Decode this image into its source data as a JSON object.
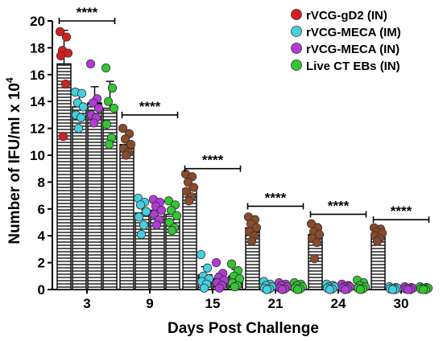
{
  "chart_data": {
    "type": "bar",
    "title": "",
    "xlabel": "Days Post Challenge",
    "ylabel": "Number of IFU/ml x 10",
    "ylabel_superscript": "4",
    "ylim": [
      0,
      20
    ],
    "yticks": [
      "0",
      "2",
      "4",
      "6",
      "8",
      "10",
      "12",
      "14",
      "16",
      "18",
      "20"
    ],
    "categories": [
      "3",
      "9",
      "15",
      "21",
      "24",
      "30"
    ],
    "legend_position": "top-right",
    "bar_pattern": "horizontal-stripes",
    "series": [
      {
        "name": "rVCG-gD2 (IN)",
        "color": "#d42020",
        "values": [
          16.8,
          10.8,
          7.5,
          4.6,
          4.1,
          4.2
        ],
        "errors": [
          2.5,
          0.6,
          0.7,
          0.5,
          0.8,
          0.3
        ]
      },
      {
        "name": "rVCG-MECA (IM)",
        "color": "#44d0e0",
        "values": [
          13.6,
          5.7,
          1.1,
          0.2,
          0.2,
          0.1
        ],
        "errors": [
          1.2,
          0.9,
          0.6,
          0.1,
          0.1,
          0.05
        ]
      },
      {
        "name": "rVCG-MECA (IN)",
        "color": "#b23ad8",
        "values": [
          13.9,
          5.9,
          0.8,
          0.2,
          0.2,
          0.1
        ],
        "errors": [
          1.2,
          0.8,
          0.4,
          0.1,
          0.1,
          0.05
        ]
      },
      {
        "name": "Live CT EBs (IN)",
        "color": "#33c633",
        "values": [
          13.5,
          5.6,
          1.0,
          0.2,
          0.3,
          0.1
        ],
        "errors": [
          2.0,
          0.8,
          0.5,
          0.1,
          0.2,
          0.05
        ]
      }
    ],
    "later_days_first_series_color": "#8a4b2a",
    "points": [
      [
        [
          19.2,
          18.8,
          17.8,
          17.6,
          17.4,
          15.3,
          11.4
        ],
        [
          14.7,
          14.6,
          13.9,
          13.6,
          13.0,
          12.8,
          12.0
        ],
        [
          16.8,
          14.2,
          13.9,
          13.5,
          13.0,
          12.8,
          12.4
        ],
        [
          16.5,
          15.0,
          14.0,
          13.5,
          12.3,
          11.3,
          10.8
        ]
      ],
      [
        [
          12.0,
          11.6,
          11.2,
          10.8,
          10.5,
          10.2,
          10.0
        ],
        [
          6.8,
          6.5,
          6.3,
          5.8,
          5.4,
          4.8,
          4.1
        ],
        [
          6.7,
          6.5,
          6.2,
          5.9,
          5.6,
          5.2,
          4.8
        ],
        [
          6.6,
          6.3,
          5.9,
          5.5,
          5.0,
          4.6,
          4.4
        ]
      ],
      [
        [
          8.6,
          8.4,
          8.0,
          7.6,
          7.3,
          6.9,
          6.6
        ],
        [
          2.6,
          1.6,
          1.0,
          0.8,
          0.6,
          0.4,
          0.1
        ],
        [
          2.0,
          1.2,
          0.9,
          0.7,
          0.5,
          0.3,
          0.1
        ],
        [
          1.9,
          1.4,
          1.0,
          0.8,
          0.5,
          0.3,
          0.2
        ]
      ],
      [
        [
          5.4,
          5.2,
          4.9,
          4.6,
          4.3,
          4.0,
          3.6
        ],
        [
          0.6,
          0.4,
          0.3,
          0.2,
          0.1,
          0.05,
          0.0
        ],
        [
          0.5,
          0.4,
          0.3,
          0.2,
          0.1,
          0.05,
          0.0
        ],
        [
          0.5,
          0.4,
          0.3,
          0.2,
          0.1,
          0.05,
          0.0
        ]
      ],
      [
        [
          4.9,
          4.6,
          4.3,
          4.1,
          3.8,
          3.5,
          2.3
        ],
        [
          0.4,
          0.3,
          0.2,
          0.2,
          0.1,
          0.05,
          0.0
        ],
        [
          0.4,
          0.3,
          0.2,
          0.2,
          0.1,
          0.05,
          0.0
        ],
        [
          0.7,
          0.5,
          0.3,
          0.2,
          0.1,
          0.05,
          0.0
        ]
      ],
      [
        [
          4.6,
          4.5,
          4.3,
          4.2,
          4.0,
          3.8,
          3.6
        ],
        [
          0.2,
          0.15,
          0.1,
          0.1,
          0.05,
          0.0,
          0.0
        ],
        [
          0.2,
          0.15,
          0.1,
          0.1,
          0.05,
          0.0,
          0.0
        ],
        [
          0.2,
          0.15,
          0.1,
          0.1,
          0.05,
          0.0,
          0.0
        ]
      ]
    ],
    "significance": [
      {
        "label": "****",
        "level": 20.0
      },
      {
        "label": "****",
        "level": 13.0
      },
      {
        "label": "****",
        "level": 9.0
      },
      {
        "label": "****",
        "level": 6.2
      },
      {
        "label": "****",
        "level": 5.6
      },
      {
        "label": "****",
        "level": 5.2
      }
    ]
  }
}
